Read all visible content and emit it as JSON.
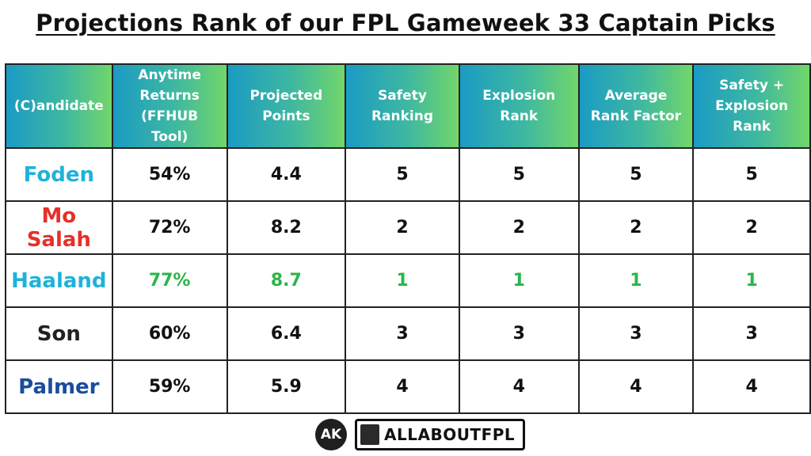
{
  "header": {
    "title": "Projections Rank of our FPL Gameweek 33 Captain Picks"
  },
  "table": {
    "columns": [
      "(C)andidate",
      "Anytime Returns (FFHUB Tool)",
      "Projected Points",
      "Safety Ranking",
      "Explosion Rank",
      "Average Rank Factor",
      "Safety + Explosion Rank"
    ],
    "rows": [
      [
        "Foden",
        "54%",
        "4.4",
        "5",
        "5",
        "5",
        "5"
      ],
      [
        "Mo Salah",
        "72%",
        "8.2",
        "2",
        "2",
        "2",
        "2"
      ],
      [
        "Haaland",
        "77%",
        "8.7",
        "1",
        "1",
        "1",
        "1"
      ],
      [
        "Son",
        "60%",
        "6.4",
        "3",
        "3",
        "3",
        "3"
      ],
      [
        "Palmer",
        "59%",
        "5.9",
        "4",
        "4",
        "4",
        "4"
      ]
    ]
  },
  "footer": {
    "badge": "AK",
    "brand": "ALLABOUTFPL"
  }
}
